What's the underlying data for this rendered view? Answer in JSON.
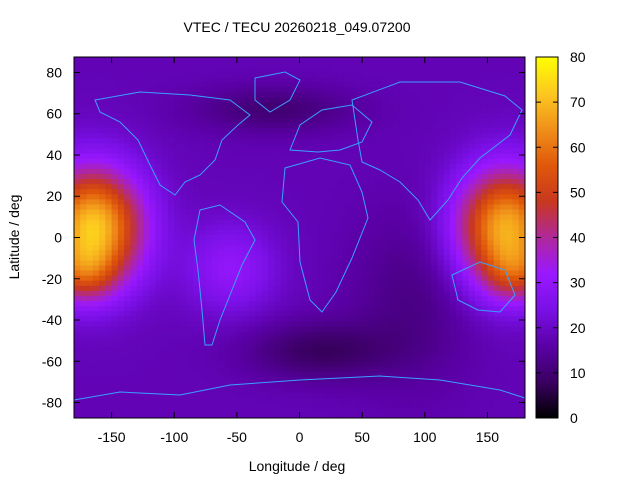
{
  "chart_data": {
    "type": "heatmap",
    "title": "VTEC / TECU 20260218_049.07200",
    "xlabel": "Longitude / deg",
    "ylabel": "Latitude / deg",
    "xlim": [
      -180,
      180
    ],
    "ylim": [
      -87.5,
      87.5
    ],
    "x_ticks": [
      -150,
      -100,
      -50,
      0,
      50,
      100,
      150
    ],
    "y_ticks": [
      -80,
      -60,
      -40,
      -20,
      0,
      20,
      40,
      60,
      80
    ],
    "colorbar": {
      "range": [
        0,
        80
      ],
      "ticks": [
        0,
        10,
        20,
        30,
        40,
        50,
        60,
        70,
        80
      ],
      "palette": [
        "#000000",
        "#3a0062",
        "#5a00a6",
        "#7a10e6",
        "#9a18ff",
        "#b0289a",
        "#c8381e",
        "#e0580a",
        "#f0901a",
        "#fcc820",
        "#ffff00"
      ]
    },
    "grid": false,
    "continent_color": "#3aa0ff",
    "features": [
      {
        "name": "anomaly-west",
        "lon": -165,
        "lat": 5,
        "value": 70
      },
      {
        "name": "anomaly-east",
        "lon": 165,
        "lat": 5,
        "value": 66
      },
      {
        "name": "polar-trough-north",
        "lon": -20,
        "lat": 60,
        "value": 12
      },
      {
        "name": "midlat-trough-south",
        "lon": 15,
        "lat": -55,
        "value": 8
      }
    ]
  }
}
